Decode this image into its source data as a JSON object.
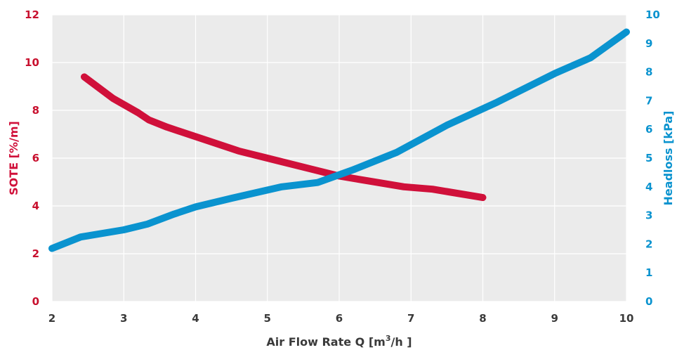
{
  "chart_data": {
    "type": "line",
    "xlabel_main": "Air Flow Rate Q [m",
    "xlabel_sup": "3",
    "xlabel_tail": "/h ]",
    "ylabel_left": "SOTE [%/m]",
    "ylabel_right": "Headloss [kPa]",
    "xlim": [
      2,
      10
    ],
    "ylim_left": [
      0,
      12
    ],
    "ylim_right": [
      0,
      10
    ],
    "x_ticks": [
      "2",
      "3",
      "4",
      "5",
      "6",
      "7",
      "8",
      "9",
      "10"
    ],
    "y_left_ticks": [
      "0",
      "2",
      "4",
      "6",
      "8",
      "10",
      "12"
    ],
    "y_right_ticks": [
      "0",
      "1",
      "2",
      "3",
      "4",
      "5",
      "6",
      "7",
      "8",
      "9",
      "10"
    ],
    "grid": true,
    "colors": {
      "sote": "#d0103a",
      "headloss": "#0a93cf",
      "plot_bg": "#ebebeb",
      "grid": "#ffffff"
    },
    "series": [
      {
        "axis": "left",
        "x": [
          2.45,
          2.85,
          3.2,
          3.35,
          3.6,
          4.0,
          4.6,
          5.2,
          5.6,
          6.0,
          6.4,
          6.9,
          7.3,
          8.0
        ],
        "y": [
          9.4,
          8.5,
          7.9,
          7.6,
          7.3,
          6.9,
          6.3,
          5.85,
          5.55,
          5.25,
          5.05,
          4.8,
          4.7,
          4.35
        ]
      },
      {
        "axis": "right",
        "x": [
          2.0,
          2.4,
          3.0,
          3.33,
          3.7,
          4.0,
          4.5,
          5.2,
          5.7,
          6.2,
          6.8,
          7.5,
          8.2,
          9.0,
          9.5,
          10.0
        ],
        "y": [
          1.85,
          2.25,
          2.5,
          2.7,
          3.05,
          3.3,
          3.6,
          4.0,
          4.15,
          4.6,
          5.2,
          6.15,
          6.95,
          7.95,
          8.5,
          9.4
        ]
      }
    ]
  }
}
